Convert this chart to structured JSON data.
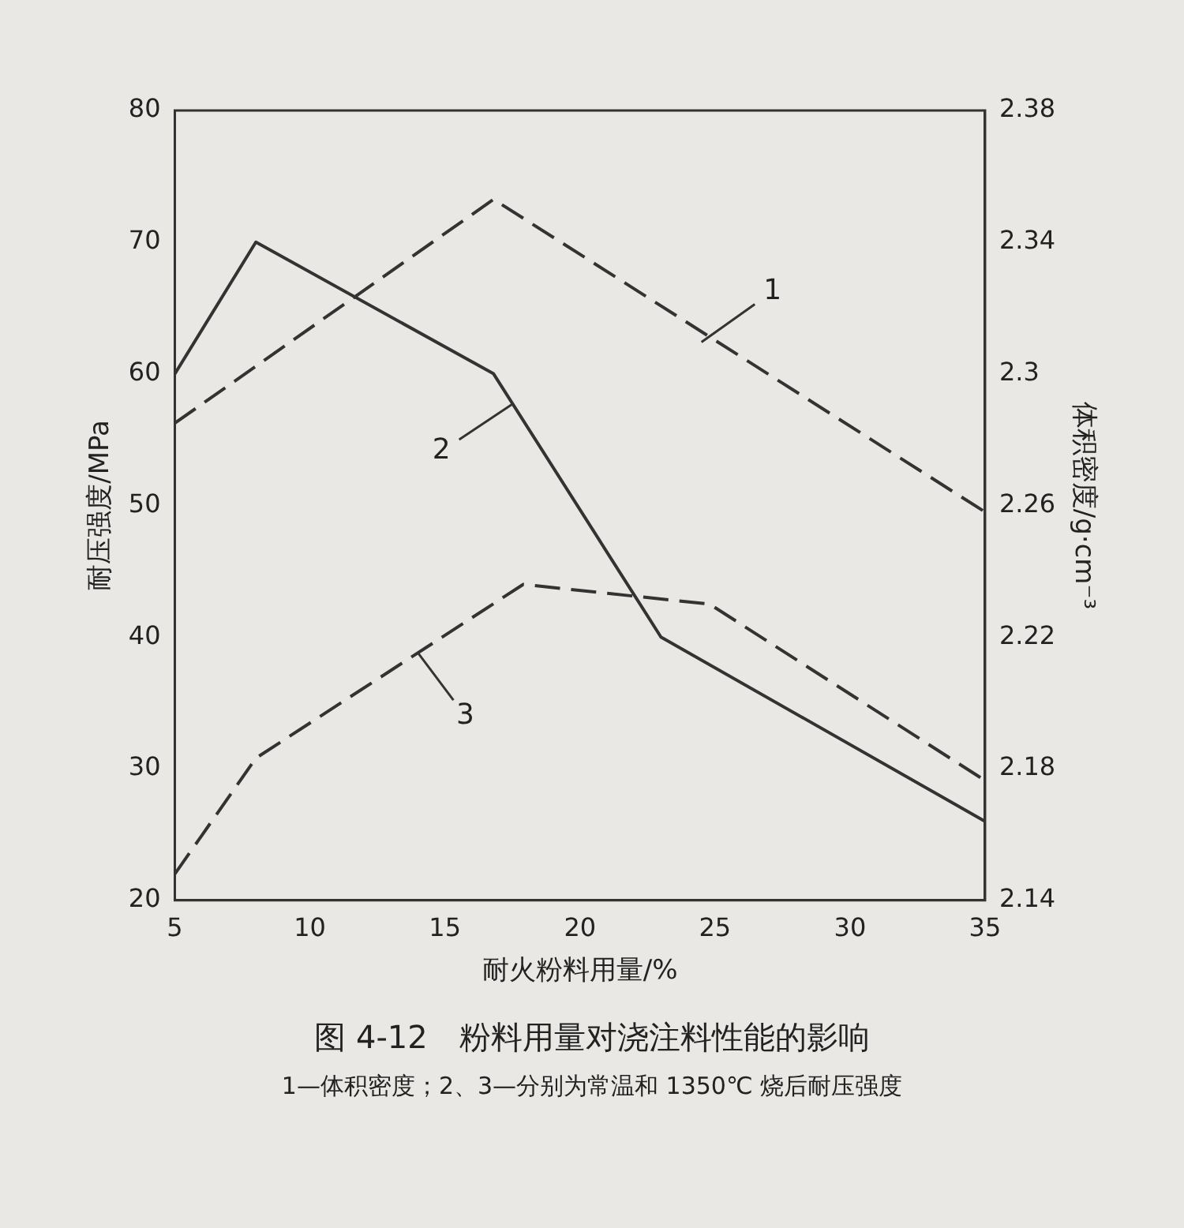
{
  "chart_data": {
    "type": "line",
    "title": "图 4-12　粉料用量对浇注料性能的影响",
    "subtitle": "1—体积密度；2、3—分别为常温和 1350℃ 烧后耐压强度",
    "xlabel": "耐火粉料用量/%",
    "ylabel": "耐压强度/MPa",
    "y2label": "体积密度/g·cm⁻³",
    "xlim": [
      5,
      35
    ],
    "xticks": [
      5,
      10,
      15,
      20,
      25,
      30,
      35
    ],
    "ylim": [
      20,
      80
    ],
    "yticks": [
      20,
      30,
      40,
      50,
      60,
      70,
      80
    ],
    "y2lim": [
      2.14,
      2.38
    ],
    "y2ticks": [
      2.14,
      2.18,
      2.22,
      2.26,
      2.3,
      2.34,
      2.38
    ],
    "grid": false,
    "legend": false,
    "marker": "none",
    "series": [
      {
        "color": "#333333",
        "axis": "y2",
        "line_style": "dashed",
        "x": [
          5,
          16.8,
          35
        ],
        "values": [
          2.285,
          2.353,
          2.258
        ]
      },
      {
        "color": "#333333",
        "line_style": "solid",
        "x": [
          5,
          8,
          16.8,
          23,
          35
        ],
        "values": [
          60,
          70,
          60,
          40,
          26
        ]
      },
      {
        "color": "#333333",
        "line_style": "dashed",
        "x": [
          5,
          8,
          17.9,
          24.8,
          35
        ],
        "values": [
          22,
          30.8,
          44,
          42.5,
          29.1
        ]
      }
    ],
    "annotations": [
      {
        "text": "1",
        "x": 24.5,
        "y": 62.4
      },
      {
        "text": "2",
        "x": 17.5,
        "y": 57.7
      },
      {
        "text": "3",
        "x": 14,
        "y": 38.8
      }
    ]
  }
}
